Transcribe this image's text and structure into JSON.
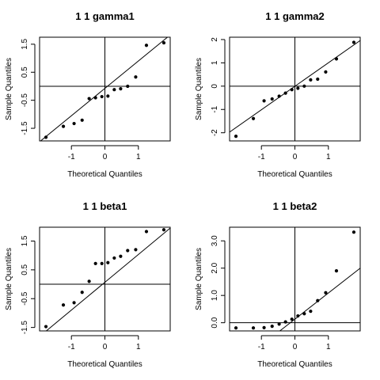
{
  "colors": {
    "points": "#000000",
    "lines": "#000000",
    "background": "#ffffff"
  },
  "chart_data": [
    {
      "type": "scatter",
      "title": "1 1 gamma1",
      "xlabel": "Theoretical Quantiles",
      "ylabel": "Sample Quantiles",
      "xlim": [
        -1.95,
        1.95
      ],
      "ylim": [
        -1.95,
        1.75
      ],
      "xticks": [
        -1,
        0,
        1
      ],
      "yticks": [
        -1.5,
        -0.5,
        0.5,
        1.5
      ],
      "ytick_labels": [
        "-1.5",
        "-0.5",
        "0.5",
        "1.5"
      ],
      "qq_line": {
        "x1": -1.95,
        "y1": -1.98,
        "x2": 1.95,
        "y2": 1.83
      },
      "points": [
        {
          "x": -1.76,
          "y": -1.82
        },
        {
          "x": -1.24,
          "y": -1.43
        },
        {
          "x": -0.92,
          "y": -1.33
        },
        {
          "x": -0.68,
          "y": -1.21
        },
        {
          "x": -0.47,
          "y": -0.44
        },
        {
          "x": -0.28,
          "y": -0.41
        },
        {
          "x": -0.09,
          "y": -0.37
        },
        {
          "x": 0.09,
          "y": -0.35
        },
        {
          "x": 0.28,
          "y": -0.12
        },
        {
          "x": 0.47,
          "y": -0.09
        },
        {
          "x": 0.68,
          "y": 0.0
        },
        {
          "x": 0.92,
          "y": 0.33
        },
        {
          "x": 1.24,
          "y": 1.46
        },
        {
          "x": 1.76,
          "y": 1.55
        }
      ]
    },
    {
      "type": "scatter",
      "title": "1 1 gamma2",
      "xlabel": "Theoretical Quantiles",
      "ylabel": "Sample Quantiles",
      "xlim": [
        -1.95,
        1.95
      ],
      "ylim": [
        -2.35,
        2.1
      ],
      "xticks": [
        -1,
        0,
        1
      ],
      "yticks": [
        -2,
        -1,
        0,
        1,
        2
      ],
      "ytick_labels": [
        "-2",
        "-1",
        "0",
        "1",
        "2"
      ],
      "qq_line": {
        "x1": -1.95,
        "y1": -1.97,
        "x2": 1.95,
        "y2": 1.96
      },
      "points": [
        {
          "x": -1.76,
          "y": -2.15
        },
        {
          "x": -1.24,
          "y": -1.39
        },
        {
          "x": -0.92,
          "y": -0.63
        },
        {
          "x": -0.68,
          "y": -0.55
        },
        {
          "x": -0.47,
          "y": -0.43
        },
        {
          "x": -0.28,
          "y": -0.3
        },
        {
          "x": -0.09,
          "y": -0.15
        },
        {
          "x": 0.09,
          "y": -0.09
        },
        {
          "x": 0.28,
          "y": 0.0
        },
        {
          "x": 0.47,
          "y": 0.27
        },
        {
          "x": 0.68,
          "y": 0.3
        },
        {
          "x": 0.92,
          "y": 0.61
        },
        {
          "x": 1.24,
          "y": 1.17
        },
        {
          "x": 1.76,
          "y": 1.88
        }
      ]
    },
    {
      "type": "scatter",
      "title": "1 1 beta1",
      "xlabel": "Theoretical Quantiles",
      "ylabel": "Sample Quantiles",
      "xlim": [
        -1.95,
        1.95
      ],
      "ylim": [
        -1.62,
        1.98
      ],
      "xticks": [
        -1,
        0,
        1
      ],
      "yticks": [
        -1.5,
        -0.5,
        0.5,
        1.5
      ],
      "ytick_labels": [
        "-1.5",
        "-0.5",
        "0.5",
        "1.5"
      ],
      "qq_line": {
        "x1": -1.75,
        "y1": -1.62,
        "x2": 1.95,
        "y2": 1.95
      },
      "points": [
        {
          "x": -1.76,
          "y": -1.47
        },
        {
          "x": -1.24,
          "y": -0.72
        },
        {
          "x": -0.92,
          "y": -0.64
        },
        {
          "x": -0.68,
          "y": -0.28
        },
        {
          "x": -0.47,
          "y": 0.1
        },
        {
          "x": -0.28,
          "y": 0.72
        },
        {
          "x": -0.09,
          "y": 0.72
        },
        {
          "x": 0.09,
          "y": 0.75
        },
        {
          "x": 0.28,
          "y": 0.91
        },
        {
          "x": 0.47,
          "y": 0.97
        },
        {
          "x": 0.68,
          "y": 1.17
        },
        {
          "x": 0.92,
          "y": 1.2
        },
        {
          "x": 1.24,
          "y": 1.83
        },
        {
          "x": 1.76,
          "y": 1.89
        }
      ]
    },
    {
      "type": "scatter",
      "title": "1 1 beta2",
      "xlabel": "Theoretical Quantiles",
      "ylabel": "Sample Quantiles",
      "xlim": [
        -1.95,
        1.95
      ],
      "ylim": [
        -0.3,
        3.5
      ],
      "xticks": [
        -1,
        0,
        1
      ],
      "yticks": [
        0.0,
        1.0,
        2.0,
        3.0
      ],
      "ytick_labels": [
        "0.0",
        "1.0",
        "2.0",
        "3.0"
      ],
      "qq_line": {
        "x1": -0.45,
        "y1": -0.3,
        "x2": 1.95,
        "y2": 2.0
      },
      "points": [
        {
          "x": -1.76,
          "y": -0.19
        },
        {
          "x": -1.24,
          "y": -0.19
        },
        {
          "x": -0.92,
          "y": -0.18
        },
        {
          "x": -0.68,
          "y": -0.13
        },
        {
          "x": -0.47,
          "y": -0.05
        },
        {
          "x": -0.28,
          "y": 0.03
        },
        {
          "x": -0.09,
          "y": 0.13
        },
        {
          "x": 0.09,
          "y": 0.25
        },
        {
          "x": 0.28,
          "y": 0.33
        },
        {
          "x": 0.47,
          "y": 0.42
        },
        {
          "x": 0.68,
          "y": 0.81
        },
        {
          "x": 0.92,
          "y": 1.1
        },
        {
          "x": 1.24,
          "y": 1.9
        },
        {
          "x": 1.76,
          "y": 3.32
        }
      ]
    }
  ]
}
